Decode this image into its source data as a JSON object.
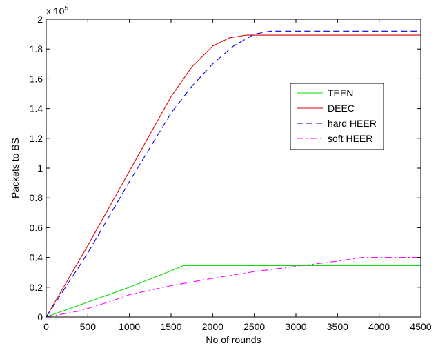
{
  "chart_data": {
    "type": "line",
    "title": "",
    "xlabel": "No of rounds",
    "ylabel": "Packets to BS",
    "y_multiplier_label": "x 10",
    "y_multiplier_exponent": "5",
    "xlim": [
      0,
      4500
    ],
    "ylim": [
      0,
      2
    ],
    "x_ticks": [
      0,
      500,
      1000,
      1500,
      2000,
      2500,
      3000,
      3500,
      4000,
      4500
    ],
    "y_ticks": [
      0,
      0.2,
      0.4,
      0.6,
      0.8,
      1,
      1.2,
      1.4,
      1.6,
      1.8,
      2
    ],
    "y_tick_labels": [
      "0",
      "0.2",
      "0.4",
      "0.6",
      "0.8",
      "1",
      "1.2",
      "1.4",
      "1.6",
      "1.8",
      "2"
    ],
    "grid": false,
    "legend_position": "right",
    "series": [
      {
        "name": "TEEN",
        "color": "#00dd00",
        "dash": "solid",
        "x": [
          0,
          500,
          1000,
          1500,
          1650,
          2000,
          3000,
          4000,
          4500
        ],
        "y": [
          0,
          0.1,
          0.2,
          0.31,
          0.345,
          0.345,
          0.345,
          0.345,
          0.345
        ]
      },
      {
        "name": "DEEC",
        "color": "#e00000",
        "dash": "solid",
        "x": [
          0,
          500,
          1000,
          1300,
          1500,
          1750,
          2000,
          2200,
          2400,
          2600,
          3000,
          4500
        ],
        "y": [
          0,
          0.48,
          0.98,
          1.28,
          1.48,
          1.68,
          1.82,
          1.875,
          1.893,
          1.893,
          1.893,
          1.893
        ]
      },
      {
        "name": "hard HEER",
        "color": "#0000dd",
        "dash": "dashed",
        "x": [
          0,
          500,
          1000,
          1500,
          1750,
          2000,
          2250,
          2500,
          2700,
          3000,
          4500
        ],
        "y": [
          0,
          0.43,
          0.91,
          1.37,
          1.55,
          1.7,
          1.82,
          1.9,
          1.92,
          1.92,
          1.92
        ]
      },
      {
        "name": "soft HEER",
        "color": "#ff00ff",
        "dash": "dashdot",
        "x": [
          0,
          400,
          800,
          1000,
          1500,
          2000,
          2500,
          3000,
          3500,
          3800,
          4000,
          4500
        ],
        "y": [
          0,
          0.04,
          0.11,
          0.15,
          0.21,
          0.26,
          0.305,
          0.34,
          0.375,
          0.4,
          0.4,
          0.4
        ]
      }
    ]
  }
}
